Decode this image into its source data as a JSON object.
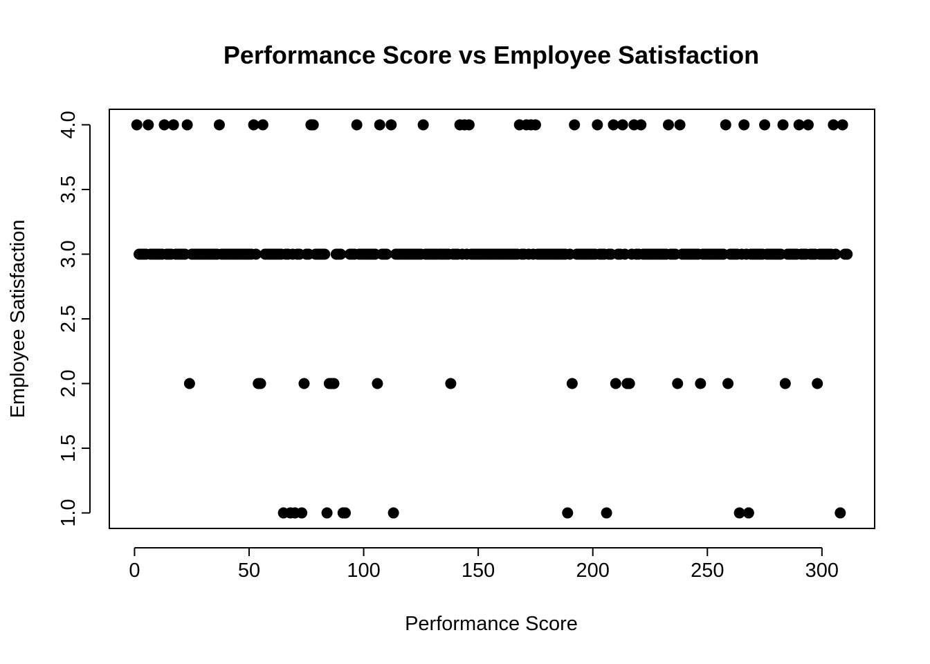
{
  "chart_data": {
    "type": "scatter",
    "title": "Performance Score vs Employee Satisfaction",
    "xlabel": "Performance Score",
    "ylabel": "Employee Satisfaction",
    "xlim": [
      -11,
      323
    ],
    "ylim": [
      0.88,
      4.12
    ],
    "xticks": [
      0,
      50,
      100,
      150,
      200,
      250,
      300
    ],
    "yticks": [
      1.0,
      1.5,
      2.0,
      2.5,
      3.0,
      3.5,
      4.0
    ],
    "xtick_labels": [
      "0",
      "50",
      "100",
      "150",
      "200",
      "250",
      "300"
    ],
    "ytick_labels": [
      "1.0",
      "1.5",
      "2.0",
      "2.5",
      "3.0",
      "3.5",
      "4.0"
    ],
    "grid": false,
    "marker_color": "#000000",
    "series": [
      {
        "points": [
          [
            1,
            4
          ],
          [
            6,
            4
          ],
          [
            13,
            4
          ],
          [
            17,
            4
          ],
          [
            23,
            4
          ],
          [
            37,
            4
          ],
          [
            52,
            4
          ],
          [
            56,
            4
          ],
          [
            77,
            4
          ],
          [
            78,
            4
          ],
          [
            97,
            4
          ],
          [
            107,
            4
          ],
          [
            112,
            4
          ],
          [
            126,
            4
          ],
          [
            142,
            4
          ],
          [
            144,
            4
          ],
          [
            146,
            4
          ],
          [
            168,
            4
          ],
          [
            171,
            4
          ],
          [
            173,
            4
          ],
          [
            175,
            4
          ],
          [
            192,
            4
          ],
          [
            202,
            4
          ],
          [
            209,
            4
          ],
          [
            213,
            4
          ],
          [
            218,
            4
          ],
          [
            221,
            4
          ],
          [
            233,
            4
          ],
          [
            238,
            4
          ],
          [
            258,
            4
          ],
          [
            266,
            4
          ],
          [
            275,
            4
          ],
          [
            283,
            4
          ],
          [
            290,
            4
          ],
          [
            294,
            4
          ],
          [
            305,
            4
          ],
          [
            309,
            4
          ],
          [
            2,
            3
          ],
          [
            3,
            3
          ],
          [
            4,
            3
          ],
          [
            5,
            3
          ],
          [
            7,
            3
          ],
          [
            8,
            3
          ],
          [
            9,
            3
          ],
          [
            10,
            3
          ],
          [
            11,
            3
          ],
          [
            12,
            3
          ],
          [
            14,
            3
          ],
          [
            15,
            3
          ],
          [
            16,
            3
          ],
          [
            18,
            3
          ],
          [
            19,
            3
          ],
          [
            20,
            3
          ],
          [
            21,
            3
          ],
          [
            22,
            3
          ],
          [
            25,
            3
          ],
          [
            26,
            3
          ],
          [
            27,
            3
          ],
          [
            28,
            3
          ],
          [
            29,
            3
          ],
          [
            30,
            3
          ],
          [
            31,
            3
          ],
          [
            32,
            3
          ],
          [
            33,
            3
          ],
          [
            34,
            3
          ],
          [
            35,
            3
          ],
          [
            36,
            3
          ],
          [
            38,
            3
          ],
          [
            39,
            3
          ],
          [
            40,
            3
          ],
          [
            41,
            3
          ],
          [
            42,
            3
          ],
          [
            43,
            3
          ],
          [
            44,
            3
          ],
          [
            45,
            3
          ],
          [
            46,
            3
          ],
          [
            47,
            3
          ],
          [
            48,
            3
          ],
          [
            49,
            3
          ],
          [
            50,
            3
          ],
          [
            51,
            3
          ],
          [
            53,
            3
          ],
          [
            57,
            3
          ],
          [
            58,
            3
          ],
          [
            59,
            3
          ],
          [
            60,
            3
          ],
          [
            61,
            3
          ],
          [
            62,
            3
          ],
          [
            63,
            3
          ],
          [
            64,
            3
          ],
          [
            66,
            3
          ],
          [
            67,
            3
          ],
          [
            69,
            3
          ],
          [
            71,
            3
          ],
          [
            72,
            3
          ],
          [
            75,
            3
          ],
          [
            76,
            3
          ],
          [
            79,
            3
          ],
          [
            80,
            3
          ],
          [
            81,
            3
          ],
          [
            82,
            3
          ],
          [
            83,
            3
          ],
          [
            88,
            3
          ],
          [
            89,
            3
          ],
          [
            90,
            3
          ],
          [
            94,
            3
          ],
          [
            95,
            3
          ],
          [
            96,
            3
          ],
          [
            98,
            3
          ],
          [
            99,
            3
          ],
          [
            100,
            3
          ],
          [
            101,
            3
          ],
          [
            102,
            3
          ],
          [
            103,
            3
          ],
          [
            104,
            3
          ],
          [
            105,
            3
          ],
          [
            108,
            3
          ],
          [
            109,
            3
          ],
          [
            110,
            3
          ],
          [
            114,
            3
          ],
          [
            115,
            3
          ],
          [
            116,
            3
          ],
          [
            117,
            3
          ],
          [
            118,
            3
          ],
          [
            119,
            3
          ],
          [
            120,
            3
          ],
          [
            121,
            3
          ],
          [
            122,
            3
          ],
          [
            123,
            3
          ],
          [
            124,
            3
          ],
          [
            125,
            3
          ],
          [
            127,
            3
          ],
          [
            128,
            3
          ],
          [
            129,
            3
          ],
          [
            130,
            3
          ],
          [
            131,
            3
          ],
          [
            132,
            3
          ],
          [
            133,
            3
          ],
          [
            134,
            3
          ],
          [
            135,
            3
          ],
          [
            136,
            3
          ],
          [
            137,
            3
          ],
          [
            139,
            3
          ],
          [
            140,
            3
          ],
          [
            141,
            3
          ],
          [
            143,
            3
          ],
          [
            145,
            3
          ],
          [
            147,
            3
          ],
          [
            148,
            3
          ],
          [
            149,
            3
          ],
          [
            150,
            3
          ],
          [
            151,
            3
          ],
          [
            152,
            3
          ],
          [
            153,
            3
          ],
          [
            154,
            3
          ],
          [
            155,
            3
          ],
          [
            156,
            3
          ],
          [
            157,
            3
          ],
          [
            158,
            3
          ],
          [
            159,
            3
          ],
          [
            160,
            3
          ],
          [
            161,
            3
          ],
          [
            162,
            3
          ],
          [
            163,
            3
          ],
          [
            164,
            3
          ],
          [
            165,
            3
          ],
          [
            166,
            3
          ],
          [
            167,
            3
          ],
          [
            169,
            3
          ],
          [
            170,
            3
          ],
          [
            172,
            3
          ],
          [
            174,
            3
          ],
          [
            176,
            3
          ],
          [
            177,
            3
          ],
          [
            178,
            3
          ],
          [
            179,
            3
          ],
          [
            180,
            3
          ],
          [
            181,
            3
          ],
          [
            182,
            3
          ],
          [
            183,
            3
          ],
          [
            184,
            3
          ],
          [
            185,
            3
          ],
          [
            186,
            3
          ],
          [
            187,
            3
          ],
          [
            188,
            3
          ],
          [
            190,
            3
          ],
          [
            193,
            3
          ],
          [
            194,
            3
          ],
          [
            195,
            3
          ],
          [
            196,
            3
          ],
          [
            197,
            3
          ],
          [
            198,
            3
          ],
          [
            199,
            3
          ],
          [
            200,
            3
          ],
          [
            201,
            3
          ],
          [
            203,
            3
          ],
          [
            204,
            3
          ],
          [
            205,
            3
          ],
          [
            207,
            3
          ],
          [
            208,
            3
          ],
          [
            211,
            3
          ],
          [
            212,
            3
          ],
          [
            214,
            3
          ],
          [
            217,
            3
          ],
          [
            219,
            3
          ],
          [
            220,
            3
          ],
          [
            222,
            3
          ],
          [
            223,
            3
          ],
          [
            224,
            3
          ],
          [
            225,
            3
          ],
          [
            226,
            3
          ],
          [
            227,
            3
          ],
          [
            228,
            3
          ],
          [
            229,
            3
          ],
          [
            230,
            3
          ],
          [
            231,
            3
          ],
          [
            232,
            3
          ],
          [
            234,
            3
          ],
          [
            235,
            3
          ],
          [
            236,
            3
          ],
          [
            239,
            3
          ],
          [
            240,
            3
          ],
          [
            241,
            3
          ],
          [
            242,
            3
          ],
          [
            243,
            3
          ],
          [
            244,
            3
          ],
          [
            245,
            3
          ],
          [
            246,
            3
          ],
          [
            248,
            3
          ],
          [
            249,
            3
          ],
          [
            250,
            3
          ],
          [
            251,
            3
          ],
          [
            252,
            3
          ],
          [
            253,
            3
          ],
          [
            254,
            3
          ],
          [
            255,
            3
          ],
          [
            256,
            3
          ],
          [
            257,
            3
          ],
          [
            260,
            3
          ],
          [
            261,
            3
          ],
          [
            262,
            3
          ],
          [
            263,
            3
          ],
          [
            265,
            3
          ],
          [
            267,
            3
          ],
          [
            269,
            3
          ],
          [
            270,
            3
          ],
          [
            271,
            3
          ],
          [
            272,
            3
          ],
          [
            273,
            3
          ],
          [
            274,
            3
          ],
          [
            276,
            3
          ],
          [
            277,
            3
          ],
          [
            278,
            3
          ],
          [
            279,
            3
          ],
          [
            280,
            3
          ],
          [
            281,
            3
          ],
          [
            282,
            3
          ],
          [
            285,
            3
          ],
          [
            286,
            3
          ],
          [
            287,
            3
          ],
          [
            288,
            3
          ],
          [
            289,
            3
          ],
          [
            291,
            3
          ],
          [
            292,
            3
          ],
          [
            293,
            3
          ],
          [
            295,
            3
          ],
          [
            296,
            3
          ],
          [
            297,
            3
          ],
          [
            299,
            3
          ],
          [
            300,
            3
          ],
          [
            301,
            3
          ],
          [
            302,
            3
          ],
          [
            303,
            3
          ],
          [
            304,
            3
          ],
          [
            306,
            3
          ],
          [
            310,
            3
          ],
          [
            311,
            3
          ],
          [
            24,
            2
          ],
          [
            54,
            2
          ],
          [
            55,
            2
          ],
          [
            74,
            2
          ],
          [
            85,
            2
          ],
          [
            86,
            2
          ],
          [
            87,
            2
          ],
          [
            106,
            2
          ],
          [
            138,
            2
          ],
          [
            191,
            2
          ],
          [
            210,
            2
          ],
          [
            215,
            2
          ],
          [
            216,
            2
          ],
          [
            237,
            2
          ],
          [
            247,
            2
          ],
          [
            259,
            2
          ],
          [
            284,
            2
          ],
          [
            298,
            2
          ],
          [
            65,
            1
          ],
          [
            68,
            1
          ],
          [
            70,
            1
          ],
          [
            73,
            1
          ],
          [
            84,
            1
          ],
          [
            91,
            1
          ],
          [
            92,
            1
          ],
          [
            113,
            1
          ],
          [
            189,
            1
          ],
          [
            206,
            1
          ],
          [
            264,
            1
          ],
          [
            268,
            1
          ],
          [
            308,
            1
          ]
        ]
      }
    ]
  }
}
